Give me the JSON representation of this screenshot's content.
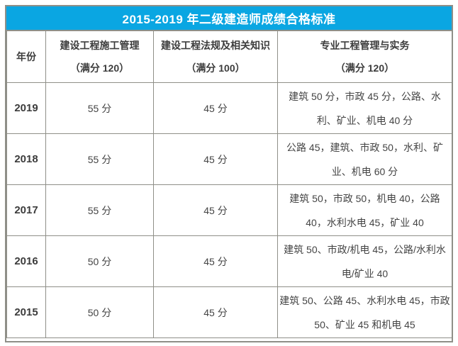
{
  "title": "2015-2019 年二级建造师成绩合格标准",
  "table": {
    "columns": [
      {
        "label": "年份",
        "sub": ""
      },
      {
        "label": "建设工程施工管理",
        "sub": "（满分 120）"
      },
      {
        "label": "建设工程法规及相关知识",
        "sub": "（满分 100）"
      },
      {
        "label": "专业工程管理与实务",
        "sub": "（满分 120）"
      }
    ],
    "rows": [
      {
        "year": "2019",
        "management": "55 分",
        "regulations": "45 分",
        "practice": "建筑 50 分，市政 45 分，公路、水利、矿业、机电 40 分"
      },
      {
        "year": "2018",
        "management": "55 分",
        "regulations": "45 分",
        "practice": "公路 45，建筑、市政 50，水利、矿业、机电 60 分"
      },
      {
        "year": "2017",
        "management": "55 分",
        "regulations": "45 分",
        "practice": "建筑 50，市政 50，机电 40，公路 40，水利水电 45，矿业 40"
      },
      {
        "year": "2016",
        "management": "50 分",
        "regulations": "45 分",
        "practice": "建筑 50、市政/机电 45，公路/水利水电/矿业 40"
      },
      {
        "year": "2015",
        "management": "50 分",
        "regulations": "45 分",
        "practice": "建筑 50、公路 45、水利水电 45，市政 50、矿业 45 和机电 45"
      }
    ]
  },
  "colors": {
    "header_bg": "#0aa6e2",
    "header_text": "#ffffff",
    "border": "#8f8f88",
    "body_text": "#444444"
  }
}
